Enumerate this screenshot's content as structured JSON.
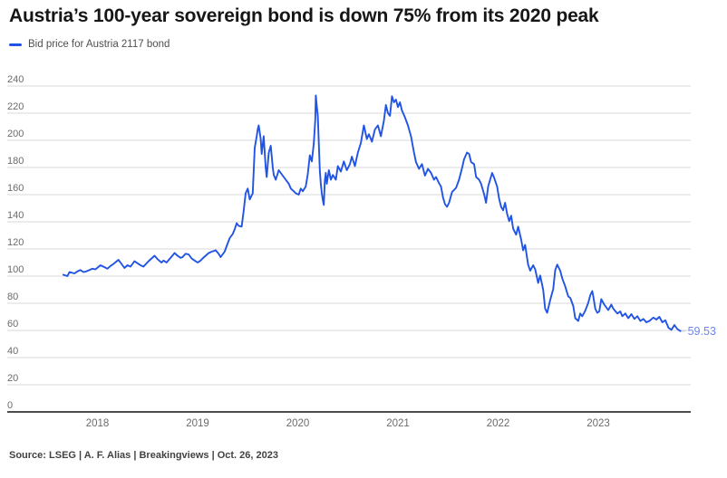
{
  "header": {
    "title": "Austria’s 100-year sovereign bond is down 75% from its 2020 peak"
  },
  "source": {
    "text": "Source: LSEG | A. F. Alias | Breakingviews | Oct. 26, 2023"
  },
  "colors": {
    "line": "#2154e4",
    "end_label": "#6e86e9",
    "leader": "#b9c8f4",
    "grid": "#d9d9d9",
    "axis": "#4d4d4d",
    "tick_text": "#6b6b6b",
    "title": "#161616"
  },
  "chart_data": {
    "type": "line",
    "title": "Austria’s 100-year sovereign bond is down 75% from its 2020 peak",
    "xlabel": "",
    "ylabel": "",
    "grid": "horizontal",
    "legend_position": "top-left",
    "x_ticks": [
      2018,
      2019,
      2020,
      2021,
      2022,
      2023
    ],
    "y_ticks": [
      0,
      20,
      40,
      60,
      80,
      100,
      120,
      140,
      160,
      180,
      200,
      220,
      240
    ],
    "ylim": [
      0,
      240
    ],
    "xlim": [
      2017.6,
      2023.95
    ],
    "end_label": "59.53",
    "last_value": 59.53,
    "series": [
      {
        "name": "Bid price for Austria 2117 bond",
        "color": "#2154e4",
        "points": [
          [
            2017.66,
            101
          ],
          [
            2017.7,
            100
          ],
          [
            2017.72,
            103
          ],
          [
            2017.77,
            102
          ],
          [
            2017.8,
            103.5
          ],
          [
            2017.83,
            104.5
          ],
          [
            2017.86,
            103
          ],
          [
            2017.89,
            103.5
          ],
          [
            2017.92,
            104.5
          ],
          [
            2017.95,
            105.5
          ],
          [
            2017.98,
            105
          ],
          [
            2018.03,
            108
          ],
          [
            2018.06,
            107
          ],
          [
            2018.1,
            105.5
          ],
          [
            2018.13,
            107.5
          ],
          [
            2018.16,
            109
          ],
          [
            2018.21,
            112
          ],
          [
            2018.24,
            109
          ],
          [
            2018.27,
            106
          ],
          [
            2018.3,
            108
          ],
          [
            2018.33,
            107
          ],
          [
            2018.37,
            111
          ],
          [
            2018.4,
            109.5
          ],
          [
            2018.43,
            108
          ],
          [
            2018.46,
            107
          ],
          [
            2018.51,
            111
          ],
          [
            2018.54,
            113
          ],
          [
            2018.57,
            115
          ],
          [
            2018.6,
            112.5
          ],
          [
            2018.64,
            110
          ],
          [
            2018.66,
            111.5
          ],
          [
            2018.69,
            110
          ],
          [
            2018.73,
            113.5
          ],
          [
            2018.77,
            117
          ],
          [
            2018.8,
            115
          ],
          [
            2018.83,
            113.5
          ],
          [
            2018.85,
            114
          ],
          [
            2018.88,
            116.5
          ],
          [
            2018.91,
            116
          ],
          [
            2018.94,
            113
          ],
          [
            2018.97,
            111.5
          ],
          [
            2019.0,
            110
          ],
          [
            2019.03,
            111.5
          ],
          [
            2019.05,
            113
          ],
          [
            2019.08,
            115
          ],
          [
            2019.11,
            117
          ],
          [
            2019.14,
            118
          ],
          [
            2019.18,
            119
          ],
          [
            2019.21,
            116.5
          ],
          [
            2019.23,
            114
          ],
          [
            2019.27,
            118
          ],
          [
            2019.3,
            124
          ],
          [
            2019.32,
            128
          ],
          [
            2019.35,
            131
          ],
          [
            2019.37,
            134.5
          ],
          [
            2019.39,
            139
          ],
          [
            2019.41,
            137
          ],
          [
            2019.44,
            136.5
          ],
          [
            2019.46,
            148
          ],
          [
            2019.48,
            161
          ],
          [
            2019.5,
            164.5
          ],
          [
            2019.52,
            156.5
          ],
          [
            2019.55,
            161
          ],
          [
            2019.57,
            194.5
          ],
          [
            2019.59,
            203
          ],
          [
            2019.6,
            208
          ],
          [
            2019.61,
            211
          ],
          [
            2019.63,
            201
          ],
          [
            2019.64,
            190
          ],
          [
            2019.66,
            203
          ],
          [
            2019.68,
            180
          ],
          [
            2019.69,
            173
          ],
          [
            2019.71,
            191
          ],
          [
            2019.73,
            196
          ],
          [
            2019.75,
            180
          ],
          [
            2019.76,
            174.5
          ],
          [
            2019.78,
            171
          ],
          [
            2019.81,
            178
          ],
          [
            2019.83,
            176
          ],
          [
            2019.86,
            173
          ],
          [
            2019.88,
            171
          ],
          [
            2019.91,
            168
          ],
          [
            2019.93,
            164.5
          ],
          [
            2019.96,
            162.5
          ],
          [
            2019.98,
            161
          ],
          [
            2020.01,
            160
          ],
          [
            2020.03,
            164.5
          ],
          [
            2020.05,
            162.5
          ],
          [
            2020.08,
            166
          ],
          [
            2020.1,
            175
          ],
          [
            2020.12,
            189
          ],
          [
            2020.14,
            184.5
          ],
          [
            2020.16,
            198
          ],
          [
            2020.175,
            215
          ],
          [
            2020.18,
            233
          ],
          [
            2020.19,
            225
          ],
          [
            2020.2,
            218
          ],
          [
            2020.21,
            198
          ],
          [
            2020.22,
            178
          ],
          [
            2020.23,
            168
          ],
          [
            2020.24,
            161
          ],
          [
            2020.25,
            156
          ],
          [
            2020.26,
            152.5
          ],
          [
            2020.27,
            170
          ],
          [
            2020.28,
            176
          ],
          [
            2020.29,
            168
          ],
          [
            2020.31,
            178
          ],
          [
            2020.33,
            171
          ],
          [
            2020.35,
            174.5
          ],
          [
            2020.38,
            171
          ],
          [
            2020.4,
            181
          ],
          [
            2020.43,
            177
          ],
          [
            2020.46,
            184.5
          ],
          [
            2020.49,
            178
          ],
          [
            2020.52,
            182.5
          ],
          [
            2020.54,
            188
          ],
          [
            2020.57,
            181
          ],
          [
            2020.6,
            191
          ],
          [
            2020.63,
            198
          ],
          [
            2020.66,
            211
          ],
          [
            2020.69,
            201
          ],
          [
            2020.71,
            204.5
          ],
          [
            2020.74,
            199
          ],
          [
            2020.77,
            208
          ],
          [
            2020.8,
            211
          ],
          [
            2020.83,
            203
          ],
          [
            2020.86,
            214.5
          ],
          [
            2020.88,
            226
          ],
          [
            2020.9,
            220
          ],
          [
            2020.92,
            218
          ],
          [
            2020.94,
            232.5
          ],
          [
            2020.96,
            228
          ],
          [
            2020.98,
            230
          ],
          [
            2021.0,
            224.5
          ],
          [
            2021.02,
            228
          ],
          [
            2021.04,
            222
          ],
          [
            2021.07,
            217
          ],
          [
            2021.1,
            211
          ],
          [
            2021.13,
            203
          ],
          [
            2021.16,
            191
          ],
          [
            2021.18,
            184
          ],
          [
            2021.21,
            179
          ],
          [
            2021.24,
            182.5
          ],
          [
            2021.27,
            174
          ],
          [
            2021.3,
            179
          ],
          [
            2021.33,
            176
          ],
          [
            2021.36,
            171
          ],
          [
            2021.38,
            173
          ],
          [
            2021.41,
            168.5
          ],
          [
            2021.43,
            166
          ],
          [
            2021.45,
            158
          ],
          [
            2021.47,
            153
          ],
          [
            2021.49,
            151
          ],
          [
            2021.51,
            154
          ],
          [
            2021.54,
            162
          ],
          [
            2021.56,
            163.5
          ],
          [
            2021.58,
            165
          ],
          [
            2021.61,
            171
          ],
          [
            2021.64,
            179.5
          ],
          [
            2021.66,
            186
          ],
          [
            2021.69,
            191
          ],
          [
            2021.71,
            190
          ],
          [
            2021.73,
            184
          ],
          [
            2021.76,
            182.5
          ],
          [
            2021.78,
            173
          ],
          [
            2021.81,
            171
          ],
          [
            2021.83,
            168
          ],
          [
            2021.86,
            160.5
          ],
          [
            2021.88,
            154
          ],
          [
            2021.9,
            166
          ],
          [
            2021.92,
            171
          ],
          [
            2021.94,
            176
          ],
          [
            2021.96,
            172.5
          ],
          [
            2021.99,
            166
          ],
          [
            2022.01,
            157
          ],
          [
            2022.03,
            151
          ],
          [
            2022.05,
            148.5
          ],
          [
            2022.07,
            154
          ],
          [
            2022.09,
            146
          ],
          [
            2022.11,
            140.5
          ],
          [
            2022.13,
            144.5
          ],
          [
            2022.15,
            135
          ],
          [
            2022.18,
            130.5
          ],
          [
            2022.2,
            136.5
          ],
          [
            2022.23,
            127
          ],
          [
            2022.25,
            119
          ],
          [
            2022.27,
            123
          ],
          [
            2022.3,
            108.5
          ],
          [
            2022.32,
            104
          ],
          [
            2022.35,
            108
          ],
          [
            2022.37,
            105
          ],
          [
            2022.4,
            95
          ],
          [
            2022.42,
            100.5
          ],
          [
            2022.45,
            90
          ],
          [
            2022.47,
            76
          ],
          [
            2022.49,
            73
          ],
          [
            2022.52,
            82.5
          ],
          [
            2022.55,
            90.5
          ],
          [
            2022.57,
            104.5
          ],
          [
            2022.59,
            108.5
          ],
          [
            2022.62,
            104
          ],
          [
            2022.64,
            98.5
          ],
          [
            2022.67,
            92.5
          ],
          [
            2022.7,
            85
          ],
          [
            2022.72,
            84
          ],
          [
            2022.75,
            78
          ],
          [
            2022.77,
            69
          ],
          [
            2022.8,
            67
          ],
          [
            2022.82,
            72.5
          ],
          [
            2022.84,
            70.5
          ],
          [
            2022.87,
            74.5
          ],
          [
            2022.9,
            80.5
          ],
          [
            2022.92,
            86
          ],
          [
            2022.94,
            89
          ],
          [
            2022.95,
            85
          ],
          [
            2022.97,
            76
          ],
          [
            2022.99,
            73
          ],
          [
            2023.01,
            74
          ],
          [
            2023.03,
            83
          ],
          [
            2023.06,
            79
          ],
          [
            2023.08,
            77
          ],
          [
            2023.1,
            75
          ],
          [
            2023.13,
            79
          ],
          [
            2023.15,
            76
          ],
          [
            2023.19,
            72.5
          ],
          [
            2023.22,
            74
          ],
          [
            2023.24,
            70.5
          ],
          [
            2023.27,
            72.5
          ],
          [
            2023.3,
            69
          ],
          [
            2023.33,
            72
          ],
          [
            2023.36,
            68.5
          ],
          [
            2023.39,
            70.5
          ],
          [
            2023.42,
            67
          ],
          [
            2023.45,
            68.5
          ],
          [
            2023.48,
            66
          ],
          [
            2023.51,
            67
          ],
          [
            2023.55,
            69.5
          ],
          [
            2023.58,
            68
          ],
          [
            2023.61,
            70
          ],
          [
            2023.64,
            66
          ],
          [
            2023.67,
            67.5
          ],
          [
            2023.7,
            62
          ],
          [
            2023.73,
            60.5
          ],
          [
            2023.76,
            64
          ],
          [
            2023.79,
            61
          ],
          [
            2023.82,
            59.53
          ]
        ]
      }
    ]
  }
}
